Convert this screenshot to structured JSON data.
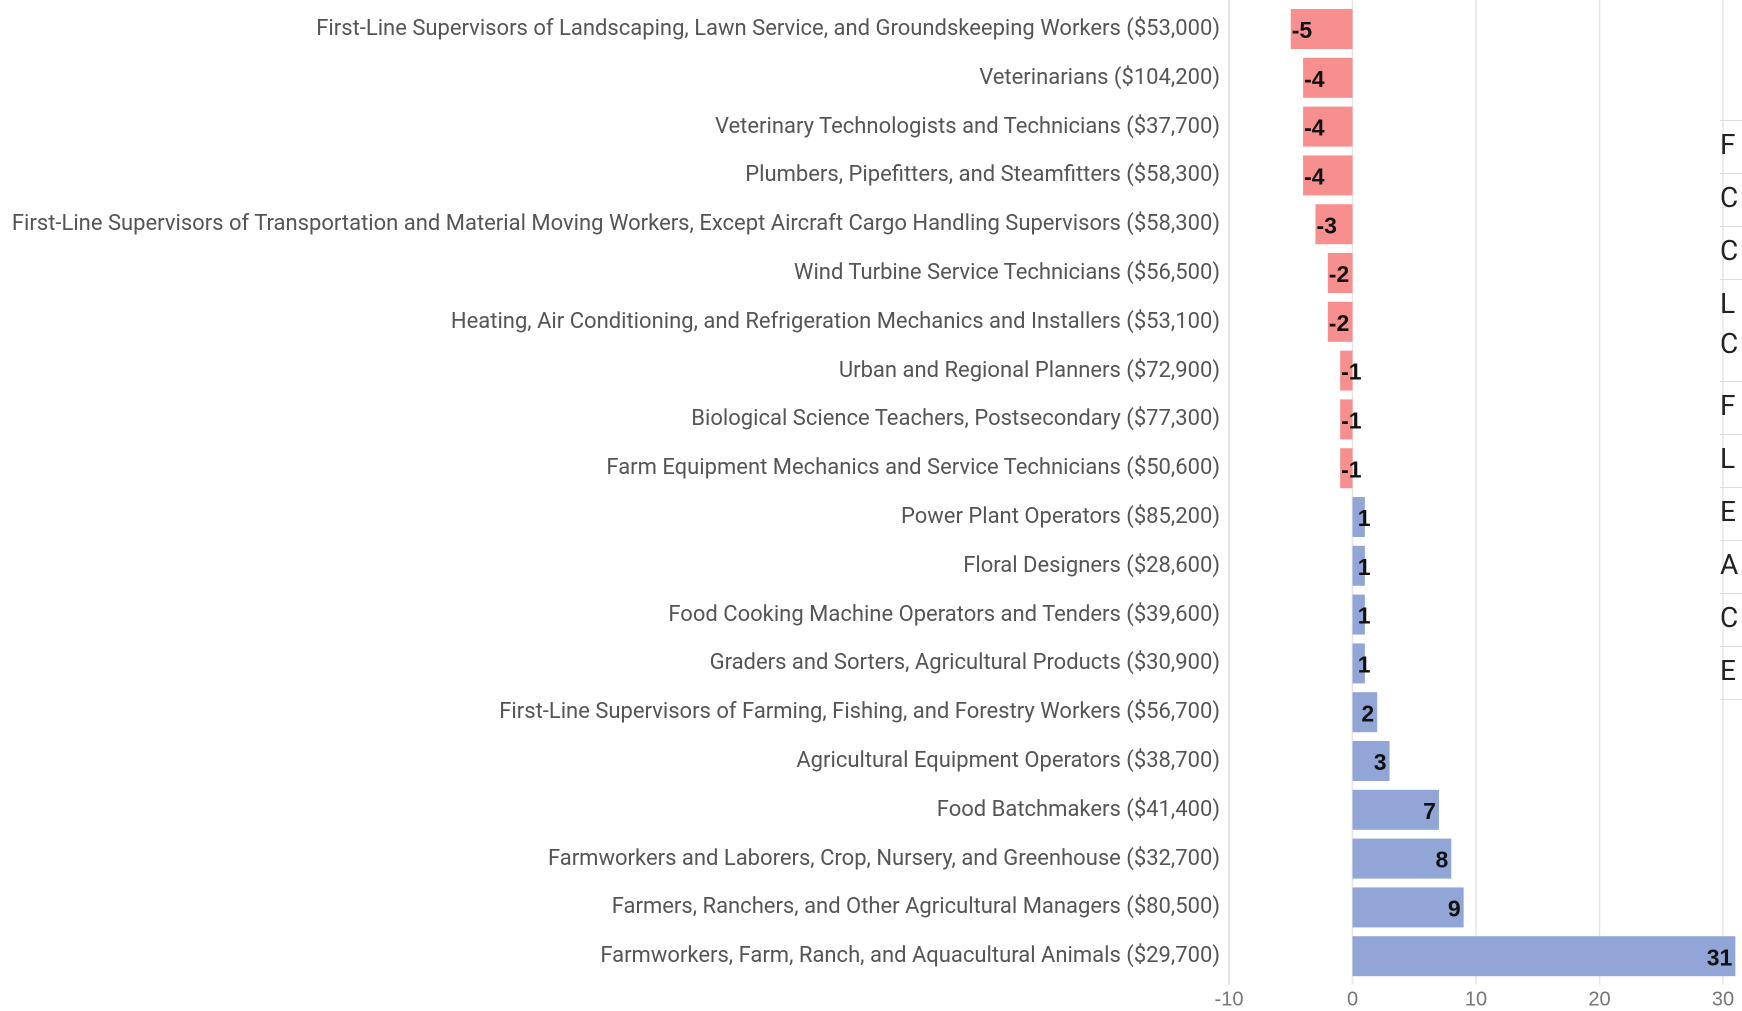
{
  "chart_data": {
    "type": "bar",
    "orientation": "horizontal",
    "categories": [
      "First-Line Supervisors of Landscaping, Lawn Service, and Groundskeeping Workers ($53,000)",
      "Veterinarians ($104,200)",
      "Veterinary Technologists and Technicians ($37,700)",
      "Plumbers, Pipefitters, and Steamfitters ($58,300)",
      "First-Line Supervisors of Transportation and Material Moving Workers, Except Aircraft Cargo Handling Supervisors ($58,300)",
      "Wind Turbine Service Technicians ($56,500)",
      "Heating, Air Conditioning, and Refrigeration Mechanics and Installers ($53,100)",
      "Urban and Regional Planners ($72,900)",
      "Biological Science Teachers, Postsecondary ($77,300)",
      "Farm Equipment Mechanics and Service Technicians ($50,600)",
      "Power Plant Operators ($85,200)",
      "Floral Designers ($28,600)",
      "Food Cooking Machine Operators and Tenders ($39,600)",
      "Graders and Sorters, Agricultural Products ($30,900)",
      "First-Line Supervisors of Farming, Fishing, and Forestry Workers ($56,700)",
      "Agricultural Equipment Operators ($38,700)",
      "Food Batchmakers ($41,400)",
      "Farmworkers and Laborers, Crop, Nursery, and Greenhouse ($32,700)",
      "Farmers, Ranchers, and Other Agricultural Managers ($80,500)",
      "Farmworkers, Farm, Ranch, and Aquacultural Animals ($29,700)"
    ],
    "values": [
      -5,
      -4,
      -4,
      -4,
      -3,
      -2,
      -2,
      -1,
      -1,
      -1,
      1,
      1,
      1,
      1,
      2,
      3,
      7,
      8,
      9,
      31
    ],
    "negative_color": "#f78f8f",
    "positive_color": "#91a6d6",
    "xlim": [
      -10,
      30
    ],
    "xticks": [
      -10,
      0,
      10,
      20,
      30
    ],
    "grid": true
  },
  "side_table": {
    "rows": [
      [
        "F"
      ],
      [
        "C"
      ],
      [
        "C"
      ],
      [
        "L",
        "C"
      ],
      [
        "F"
      ],
      [
        "L"
      ],
      [
        "E"
      ],
      [
        "A"
      ],
      [
        "C"
      ],
      [
        "E"
      ]
    ]
  }
}
